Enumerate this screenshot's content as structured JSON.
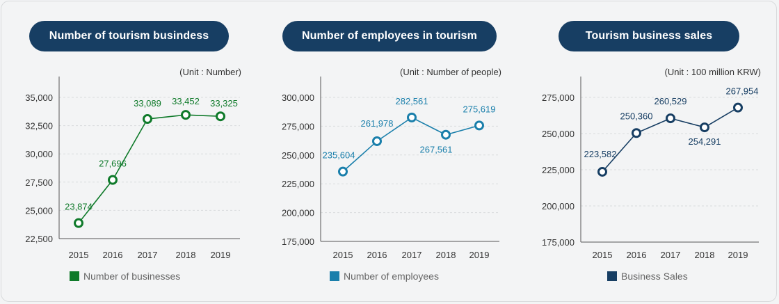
{
  "panels": [
    {
      "title": "Number of tourism busindess",
      "unit": "(Unit : Number)",
      "legend": "Number of businesses",
      "color": "#0f7a2a"
    },
    {
      "title": "Number of employees in tourism",
      "unit": "(Unit : Number of people)",
      "legend": "Number of employees",
      "color": "#1a7fab"
    },
    {
      "title": "Tourism business sales",
      "unit": "(Unit : 100 million KRW)",
      "legend": "Business Sales",
      "color": "#173e63"
    }
  ],
  "chart_data": [
    {
      "type": "line",
      "title": "Number of tourism busindess",
      "x": [
        "2015",
        "2016",
        "2017",
        "2018",
        "2019"
      ],
      "series": [
        {
          "name": "Number of businesses",
          "values": [
            23874,
            27696,
            33089,
            33452,
            33325
          ]
        }
      ],
      "data_labels": [
        "23,874",
        "27,696",
        "33,089",
        "33,452",
        "33,325"
      ],
      "ylim": [
        22500,
        35000
      ],
      "yticks": [
        22500,
        25000,
        27500,
        30000,
        32500,
        35000
      ],
      "ytick_labels": [
        "22,500",
        "25,000",
        "27,500",
        "30,000",
        "32,500",
        "35,000"
      ],
      "grid": true,
      "legend": "bottom-left"
    },
    {
      "type": "line",
      "title": "Number of employees in tourism",
      "x": [
        "2015",
        "2016",
        "2017",
        "2018",
        "2019"
      ],
      "series": [
        {
          "name": "Number of employees",
          "values": [
            235604,
            261978,
            282561,
            267561,
            275619
          ]
        }
      ],
      "data_labels": [
        "235,604",
        "261,978",
        "282,561",
        "267,561",
        "275,619"
      ],
      "ylim": [
        175000,
        300000
      ],
      "yticks": [
        175000,
        200000,
        225000,
        250000,
        275000,
        300000
      ],
      "ytick_labels": [
        "175,000",
        "200,000",
        "225,000",
        "250,000",
        "275,000",
        "300,000"
      ],
      "grid": true,
      "legend": "bottom-left"
    },
    {
      "type": "line",
      "title": "Tourism business sales",
      "x": [
        "2015",
        "2016",
        "2017",
        "2018",
        "2019"
      ],
      "series": [
        {
          "name": "Business Sales",
          "values": [
            223582,
            250360,
            260529,
            254291,
            267954
          ]
        }
      ],
      "data_labels": [
        "223,582",
        "250,360",
        "260,529",
        "254,291",
        "267,954"
      ],
      "ylim": [
        175000,
        275000
      ],
      "yticks": [
        175000,
        200000,
        225000,
        250000,
        275000
      ],
      "ytick_labels": [
        "175,000",
        "200,000",
        "225,000",
        "250,000",
        "275,000"
      ],
      "grid": true,
      "legend": "bottom-left"
    }
  ]
}
